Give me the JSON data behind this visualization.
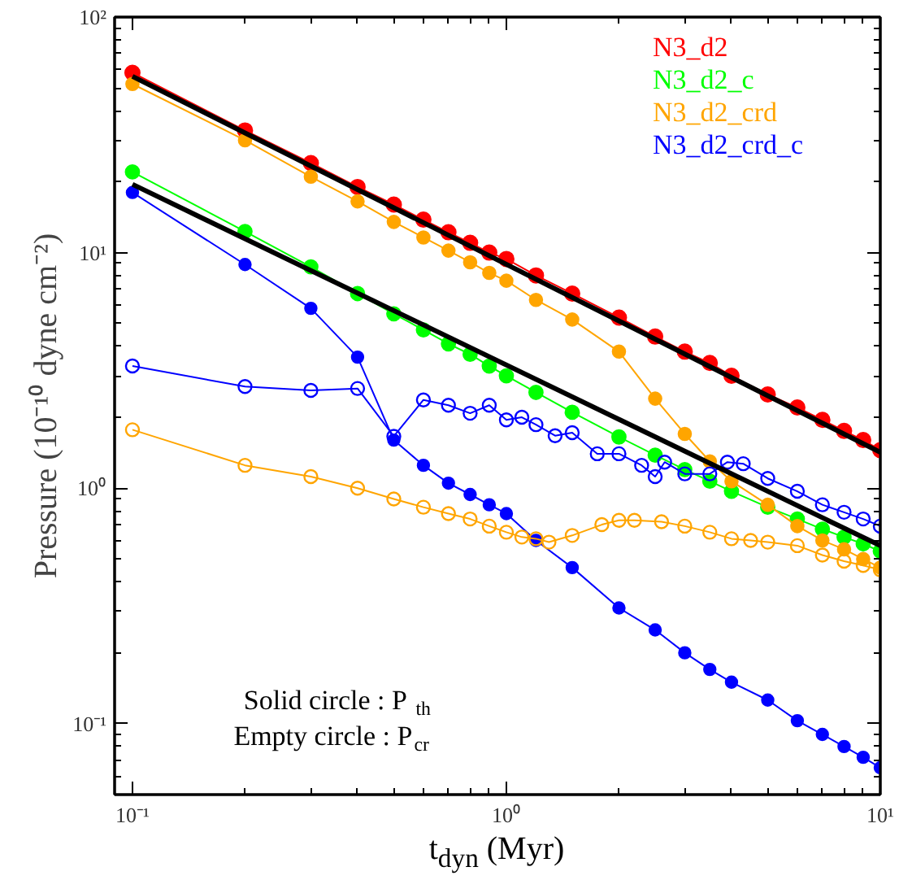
{
  "chart_data": {
    "type": "line",
    "xlabel": "t$_{dyn}$ (Myr)",
    "ylabel": "Pressure (10⁻¹⁰ dyne cm⁻²)",
    "log": "xy",
    "xlim": [
      0.0896,
      10
    ],
    "ylim": [
      0.05,
      100
    ],
    "xticks": [
      {
        "value": 0.1,
        "label": "10⁻¹"
      },
      {
        "value": 0.2,
        "label": null
      },
      {
        "value": 0.3,
        "label": null
      },
      {
        "value": 0.4,
        "label": null
      },
      {
        "value": 0.5,
        "label": null
      },
      {
        "value": 0.6,
        "label": null
      },
      {
        "value": 0.7,
        "label": null
      },
      {
        "value": 0.8,
        "label": null
      },
      {
        "value": 0.9,
        "label": null
      },
      {
        "value": 1,
        "label": "10⁰"
      },
      {
        "value": 2,
        "label": null
      },
      {
        "value": 3,
        "label": null
      },
      {
        "value": 4,
        "label": null
      },
      {
        "value": 5,
        "label": null
      },
      {
        "value": 6,
        "label": null
      },
      {
        "value": 7,
        "label": null
      },
      {
        "value": 8,
        "label": null
      },
      {
        "value": 9,
        "label": null
      },
      {
        "value": 10,
        "label": "10¹"
      }
    ],
    "yticks": [
      {
        "value": 0.06,
        "label": null
      },
      {
        "value": 0.07,
        "label": null
      },
      {
        "value": 0.08,
        "label": null
      },
      {
        "value": 0.09,
        "label": null
      },
      {
        "value": 0.1,
        "label": "10⁻¹"
      },
      {
        "value": 0.2,
        "label": null
      },
      {
        "value": 0.3,
        "label": null
      },
      {
        "value": 0.4,
        "label": null
      },
      {
        "value": 0.5,
        "label": null
      },
      {
        "value": 0.6,
        "label": null
      },
      {
        "value": 0.7,
        "label": null
      },
      {
        "value": 0.8,
        "label": null
      },
      {
        "value": 0.9,
        "label": null
      },
      {
        "value": 1,
        "label": "10⁰"
      },
      {
        "value": 2,
        "label": null
      },
      {
        "value": 3,
        "label": null
      },
      {
        "value": 4,
        "label": null
      },
      {
        "value": 5,
        "label": null
      },
      {
        "value": 6,
        "label": null
      },
      {
        "value": 7,
        "label": null
      },
      {
        "value": 8,
        "label": null
      },
      {
        "value": 9,
        "label": null
      },
      {
        "value": 10,
        "label": "10¹"
      },
      {
        "value": 20,
        "label": null
      },
      {
        "value": 30,
        "label": null
      },
      {
        "value": 40,
        "label": null
      },
      {
        "value": 50,
        "label": null
      },
      {
        "value": 60,
        "label": null
      },
      {
        "value": 70,
        "label": null
      },
      {
        "value": 80,
        "label": null
      },
      {
        "value": 90,
        "label": null
      },
      {
        "value": 100,
        "label": "10²"
      }
    ],
    "grid": false,
    "legend": "top right",
    "line_style": "solid",
    "annotations": [
      "Solid  circle : P$_{th}$",
      "Empty circle : P$_{cr}$"
    ],
    "series": [
      {
        "name": "N3_d2",
        "color": "#ff0000",
        "marker": "circle",
        "x": [
          0.1,
          0.2,
          0.3,
          0.4,
          0.5,
          0.6,
          0.7,
          0.8,
          0.9,
          1,
          1.2,
          1.5,
          2,
          2.5,
          3,
          3.5,
          4,
          5,
          6,
          7,
          8,
          9,
          10
        ],
        "values": [
          58,
          33,
          24,
          19,
          16,
          13.8,
          12.2,
          11,
          10,
          9.4,
          8,
          6.7,
          5.3,
          4.4,
          3.8,
          3.4,
          3.0,
          2.5,
          2.2,
          1.95,
          1.75,
          1.6,
          1.45
        ]
      },
      {
        "name": "N3_d2_c",
        "color": "#00ff00",
        "marker": "circle",
        "x": [
          0.1,
          0.2,
          0.3,
          0.4,
          0.5,
          0.6,
          0.7,
          0.8,
          0.9,
          1,
          1.2,
          1.5,
          2,
          2.5,
          3,
          3.5,
          4,
          5,
          6,
          7,
          8,
          9,
          10
        ],
        "values": [
          22,
          12.3,
          8.7,
          6.7,
          5.5,
          4.7,
          4.1,
          3.7,
          3.3,
          3.0,
          2.55,
          2.1,
          1.65,
          1.38,
          1.2,
          1.07,
          0.97,
          0.83,
          0.74,
          0.67,
          0.62,
          0.58,
          0.54
        ]
      },
      {
        "name": "N3_d2_crd",
        "color": "#ffa500",
        "marker": "circle",
        "x": [
          0.1,
          0.2,
          0.3,
          0.4,
          0.5,
          0.6,
          0.7,
          0.8,
          0.9,
          1,
          1.2,
          1.5,
          2,
          2.5,
          3,
          3.5,
          4,
          5,
          6,
          7,
          8,
          9,
          10
        ],
        "values": [
          52,
          30,
          21,
          16.5,
          13.5,
          11.6,
          10.2,
          9.1,
          8.2,
          7.6,
          6.3,
          5.2,
          3.8,
          2.4,
          1.7,
          1.3,
          1.07,
          0.85,
          0.69,
          0.6,
          0.55,
          0.5,
          0.46
        ]
      },
      {
        "name": "N3_d2_crd_c",
        "color": "#0000ff",
        "marker": "circle",
        "x": [
          0.1,
          0.2,
          0.3,
          0.4,
          0.5,
          0.6,
          0.7,
          0.8,
          0.9,
          1,
          1.2,
          1.5,
          2,
          2.5,
          3,
          3.5,
          4,
          5,
          6,
          7,
          8,
          9,
          10
        ],
        "values": [
          18,
          8.9,
          5.8,
          3.6,
          1.6,
          1.25,
          1.05,
          0.94,
          0.85,
          0.78,
          0.6,
          0.46,
          0.31,
          0.25,
          0.2,
          0.17,
          0.15,
          0.126,
          0.103,
          0.09,
          0.08,
          0.072,
          0.065
        ]
      },
      {
        "color": "#ffa500",
        "marker": "circle_open",
        "x": [
          0.1,
          0.2,
          0.3,
          0.4,
          0.5,
          0.6,
          0.7,
          0.8,
          0.9,
          1,
          1.1,
          1.2,
          1.3,
          1.5,
          1.8,
          2,
          2.2,
          2.6,
          3,
          3.5,
          4,
          4.5,
          5,
          6,
          7,
          8,
          9,
          10
        ],
        "values": [
          1.77,
          1.25,
          1.12,
          1.0,
          0.9,
          0.83,
          0.78,
          0.74,
          0.69,
          0.65,
          0.62,
          0.61,
          0.59,
          0.63,
          0.7,
          0.73,
          0.73,
          0.72,
          0.69,
          0.65,
          0.61,
          0.6,
          0.59,
          0.57,
          0.52,
          0.49,
          0.47,
          0.45
        ]
      },
      {
        "color": "#0000ff",
        "marker": "circle_open",
        "x": [
          0.1,
          0.2,
          0.3,
          0.4,
          0.5,
          0.6,
          0.7,
          0.8,
          0.9,
          1,
          1.1,
          1.2,
          1.35,
          1.5,
          1.75,
          2,
          2.3,
          2.5,
          2.65,
          3,
          3.5,
          3.9,
          4.3,
          5,
          6,
          7,
          8,
          9,
          10
        ],
        "values": [
          3.3,
          2.7,
          2.6,
          2.65,
          1.66,
          2.37,
          2.25,
          2.08,
          2.25,
          1.95,
          2.0,
          1.86,
          1.67,
          1.72,
          1.4,
          1.4,
          1.25,
          1.12,
          1.29,
          1.15,
          1.15,
          1.29,
          1.27,
          1.1,
          0.97,
          0.85,
          0.79,
          0.74,
          0.69
        ]
      },
      {
        "color": "#000000",
        "marker": "none",
        "x": [
          0.1,
          10
        ],
        "values": [
          56,
          1.42
        ]
      },
      {
        "color": "#000000",
        "marker": "none",
        "x": [
          0.1,
          10
        ],
        "values": [
          19.5,
          0.57
        ]
      }
    ]
  }
}
